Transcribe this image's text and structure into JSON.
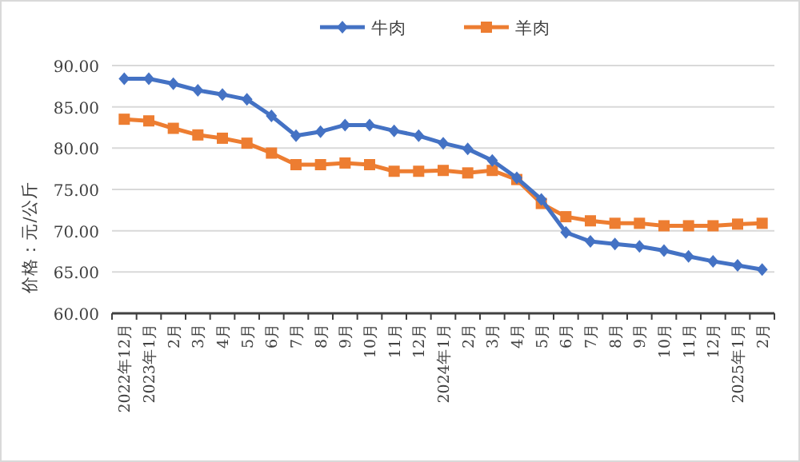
{
  "chart_data": {
    "type": "line",
    "ylabel": "价格：元/公斤",
    "categories": [
      "2022年12月",
      "2023年1月",
      "2月",
      "3月",
      "4月",
      "5月",
      "6月",
      "7月",
      "8月",
      "9月",
      "10月",
      "11月",
      "12月",
      "2024年1月",
      "2月",
      "3月",
      "4月",
      "5月",
      "6月",
      "7月",
      "8月",
      "9月",
      "10月",
      "11月",
      "12月",
      "2025年1月",
      "2月"
    ],
    "series": [
      {
        "name": "牛肉",
        "color": "#4472c4",
        "marker": "diamond",
        "values": [
          88.4,
          88.4,
          87.8,
          87.0,
          86.5,
          85.9,
          83.9,
          81.5,
          82.0,
          82.8,
          82.8,
          82.1,
          81.5,
          80.6,
          79.9,
          78.5,
          76.4,
          73.8,
          69.8,
          68.7,
          68.4,
          68.1,
          67.6,
          66.9,
          66.3,
          65.8,
          65.3
        ]
      },
      {
        "name": "羊肉",
        "color": "#ed7d31",
        "marker": "square",
        "values": [
          83.5,
          83.3,
          82.4,
          81.6,
          81.2,
          80.6,
          79.4,
          78.0,
          78.0,
          78.2,
          78.0,
          77.2,
          77.2,
          77.3,
          77.0,
          77.3,
          76.2,
          73.3,
          71.7,
          71.2,
          70.9,
          70.9,
          70.6,
          70.6,
          70.6,
          70.8,
          70.9
        ]
      }
    ],
    "ylim": [
      60,
      90
    ],
    "yticks": [
      {
        "value": 60,
        "label": "60.00"
      },
      {
        "value": 65,
        "label": "65.00"
      },
      {
        "value": 70,
        "label": "70.00"
      },
      {
        "value": 75,
        "label": "75.00"
      },
      {
        "value": 80,
        "label": "80.00"
      },
      {
        "value": 85,
        "label": "85.00"
      },
      {
        "value": 90,
        "label": "90.00"
      }
    ],
    "grid": "y",
    "legend": "top",
    "line_style": "solid"
  }
}
